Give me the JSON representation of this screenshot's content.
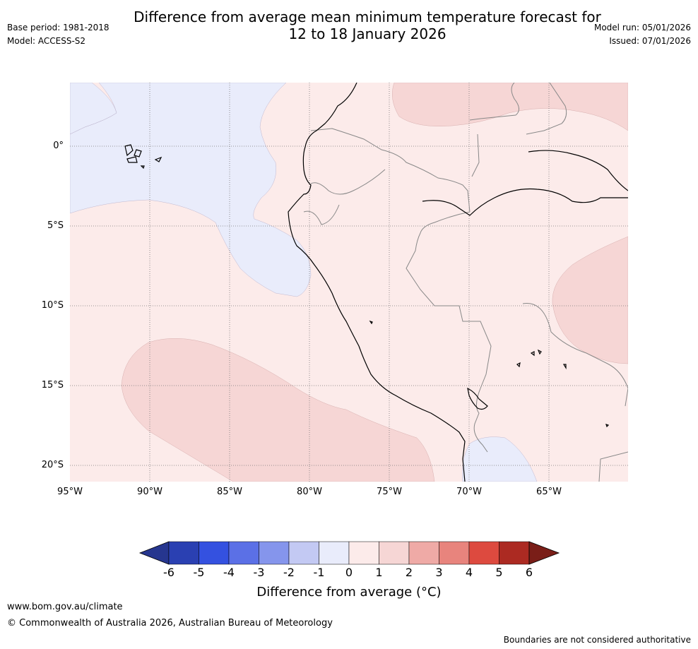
{
  "header": {
    "title_line1": "Difference from average mean minimum temperature forecast for",
    "title_line2": "12 to 18 January 2026",
    "base_period": "Base period: 1981-2018",
    "model": "Model: ACCESS-S2",
    "model_run": "Model run: 05/01/2026",
    "issued": "Issued: 07/01/2026"
  },
  "map": {
    "extent": {
      "lon_min": -95,
      "lon_max": -60,
      "lat_min": -21,
      "lat_max": 4
    },
    "lat_labels": [
      "0°",
      "5°S",
      "10°S",
      "15°S",
      "20°S"
    ],
    "lon_labels": [
      "95°W",
      "90°W",
      "85°W",
      "80°W",
      "75°W",
      "70°W",
      "65°W"
    ]
  },
  "colorbar": {
    "ticks": [
      "-6",
      "-5",
      "-4",
      "-3",
      "-2",
      "-1",
      "0",
      "1",
      "2",
      "3",
      "4",
      "5",
      "6"
    ],
    "colors": [
      "#26368f",
      "#2a40b2",
      "#3451e0",
      "#5b70e6",
      "#8595ec",
      "#c3c9f3",
      "#e9ecfb",
      "#fcebea",
      "#f6d6d5",
      "#efaaa6",
      "#e8847d",
      "#dd4a3f",
      "#ac2a22",
      "#7a1e18"
    ],
    "label": "Difference from average (°C)"
  },
  "footer": {
    "url": "www.bom.gov.au/climate",
    "copyright": "© Commonwealth of Australia 2026, Australian Bureau of Meteorology",
    "disclaimer": "Boundaries are not considered authoritative"
  }
}
